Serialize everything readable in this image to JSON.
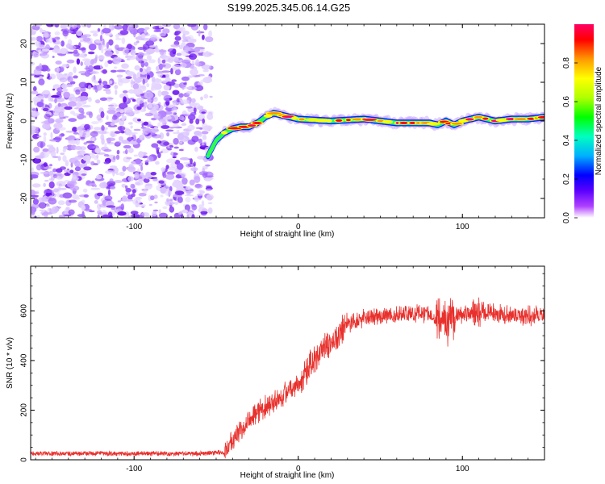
{
  "title": "S199.2025.345.06.14.G25",
  "chart_data": [
    {
      "type": "heatmap",
      "name": "spectrogram",
      "xlabel": "Height of straight line (km)",
      "ylabel": "Frequency (Hz)",
      "xlim": [
        -163,
        150
      ],
      "ylim": [
        -25,
        25
      ],
      "x_ticks": [
        -100,
        0,
        100
      ],
      "y_ticks": [
        -20,
        -10,
        0,
        10,
        20
      ],
      "noise_region_x": [
        -163,
        -53
      ],
      "ridge_frequency": {
        "x": [
          -55,
          -50,
          -45,
          -40,
          -35,
          -30,
          -25,
          -20,
          -15,
          -10,
          0,
          20,
          40,
          60,
          80,
          85,
          90,
          95,
          100,
          110,
          120,
          130,
          140,
          150
        ],
        "y": [
          -9,
          -5,
          -3,
          -2,
          -1.5,
          -1.5,
          -0.5,
          1,
          2,
          1.5,
          0.5,
          0,
          0.5,
          -0.5,
          -0.5,
          -1,
          0,
          -1,
          0,
          1,
          0,
          0.5,
          0.5,
          1
        ]
      },
      "colorbar": {
        "label": "Normalized spectral amplitude",
        "ticks": [
          0.0,
          0.2,
          0.4,
          0.6,
          0.8
        ],
        "range": [
          0,
          1
        ],
        "colors": [
          "#ffffff",
          "#b040ff",
          "#5a00ff",
          "#0000ff",
          "#00b0ff",
          "#00ffc0",
          "#00ff00",
          "#b0ff00",
          "#ffff00",
          "#ff9900",
          "#ff0000",
          "#ff0066"
        ]
      }
    },
    {
      "type": "line",
      "name": "snr",
      "xlabel": "Height of straight line (km)",
      "ylabel": "SNR (10 * v/v)",
      "xlim": [
        -163,
        150
      ],
      "ylim": [
        0,
        780
      ],
      "x_ticks": [
        -100,
        0,
        100
      ],
      "y_ticks": [
        0,
        200,
        400,
        600
      ],
      "color": "#e8302c",
      "trend": {
        "x": [
          -163,
          -60,
          -45,
          -40,
          -30,
          -20,
          -10,
          0,
          10,
          20,
          30,
          40,
          50,
          60,
          70,
          80,
          85,
          90,
          95,
          100,
          110,
          120,
          130,
          140,
          150
        ],
        "y": [
          25,
          25,
          30,
          80,
          170,
          215,
          260,
          310,
          400,
          470,
          545,
          570,
          580,
          585,
          590,
          590,
          570,
          560,
          580,
          585,
          600,
          590,
          580,
          580,
          585
        ]
      }
    }
  ]
}
